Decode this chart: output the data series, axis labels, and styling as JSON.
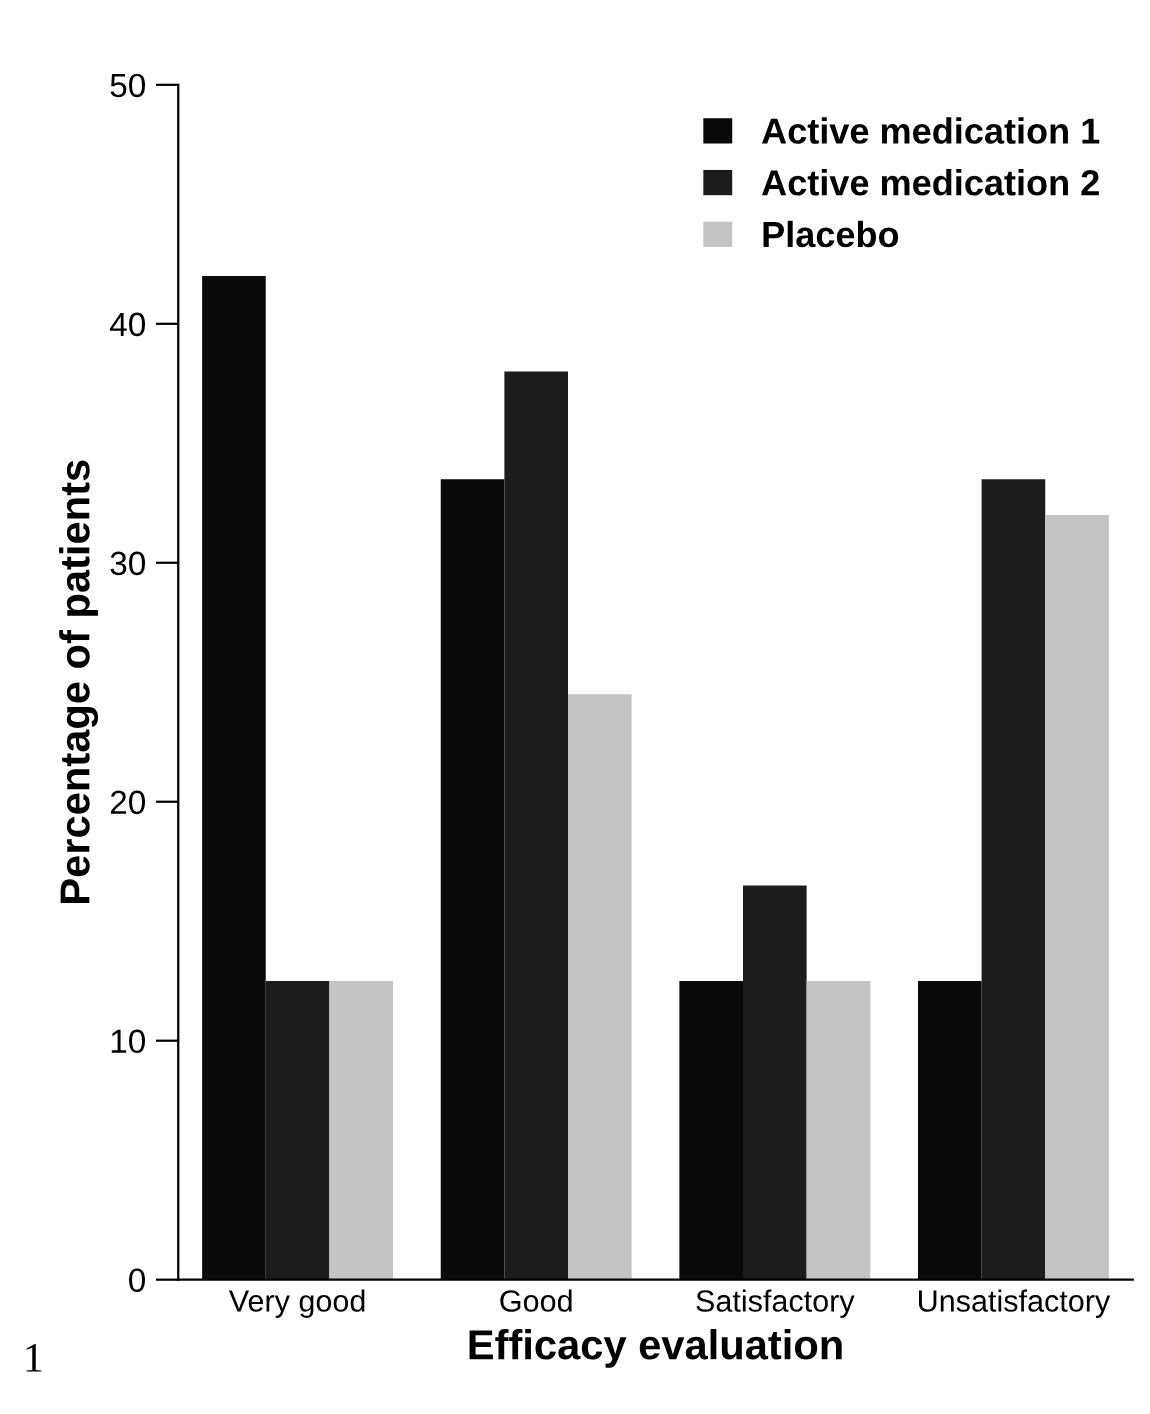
{
  "chart_data": {
    "type": "bar",
    "xlabel": "Efficacy evaluation",
    "ylabel": "Percentage of patients",
    "categories": [
      "Very good",
      "Good",
      "Satisfactory",
      "Unsatisfactory"
    ],
    "series": [
      {
        "name": "Active medication 1",
        "color": "#0a0a0a",
        "values": [
          42,
          33.5,
          12.5,
          12.5
        ]
      },
      {
        "name": "Active medication 2",
        "color": "#1c1c1c",
        "values": [
          12.5,
          38,
          16.5,
          33.5
        ]
      },
      {
        "name": "Placebo",
        "color": "#c4c4c4",
        "values": [
          12.5,
          24.5,
          12.5,
          32
        ]
      }
    ],
    "ylim": [
      0,
      50
    ],
    "yticks": [
      0,
      10,
      20,
      30,
      40,
      50
    ],
    "grid": false,
    "legend": "top right",
    "annotations": [
      "1"
    ]
  }
}
